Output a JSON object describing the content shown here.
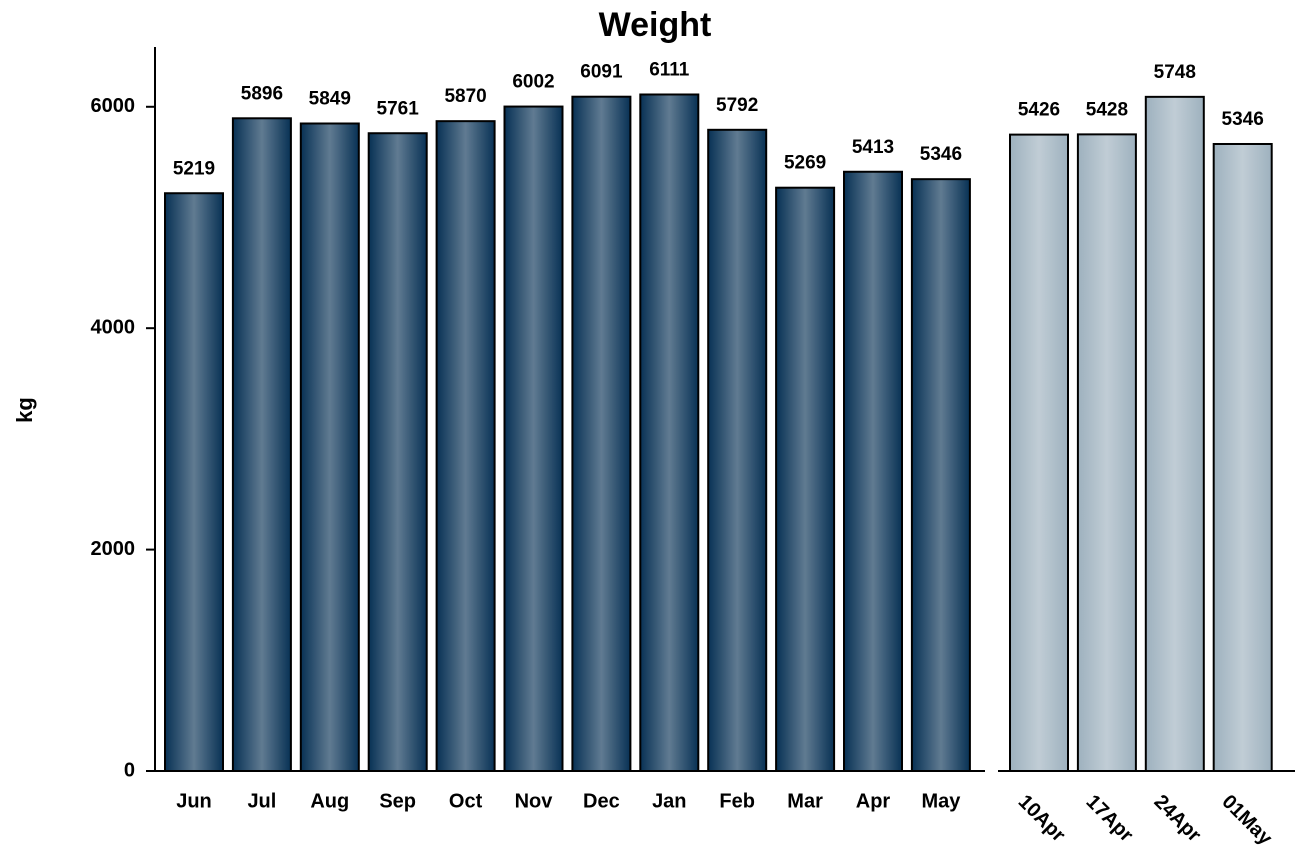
{
  "chart_data": [
    {
      "type": "bar",
      "title": "Weight",
      "y_label": "kg",
      "categories": [
        "Jun",
        "Jul",
        "Aug",
        "Sep",
        "Oct",
        "Nov",
        "Dec",
        "Jan",
        "Feb",
        "Mar",
        "Apr",
        "May"
      ],
      "values": [
        5219,
        5896,
        5849,
        5761,
        5870,
        6002,
        6091,
        6111,
        5792,
        5269,
        5413,
        5346
      ],
      "color": "#0b3457",
      "ylim": [
        0,
        6540
      ],
      "yticks": [
        0,
        2000,
        4000,
        6000
      ]
    },
    {
      "type": "bar",
      "categories": [
        "10Apr",
        "17Apr",
        "24Apr",
        "01May"
      ],
      "values": [
        5426,
        5428,
        5748,
        5346
      ],
      "color": "#9fb2bf",
      "ylim": [
        0,
        6173
      ]
    }
  ]
}
